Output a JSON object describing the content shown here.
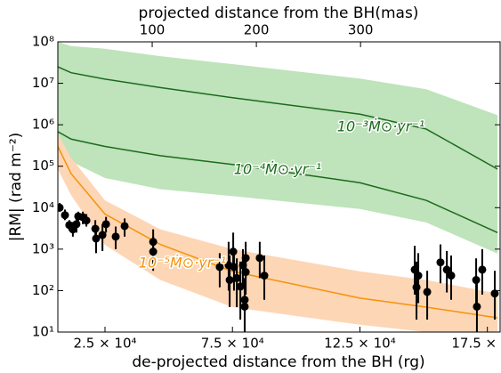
{
  "chart_data": {
    "type": "line",
    "x_label": "de-projected distance from the BH (rg)",
    "x2_label": "projected distance from the BH(mas)",
    "y_label": "|RM| (rad m⁻²)",
    "log_y": true,
    "legend": false,
    "xlim": [
      6500,
      180000
    ],
    "xticks": [
      {
        "value": 25000,
        "label": "2.5 × 10⁴"
      },
      {
        "value": 75000,
        "label": "7.5 × 10⁴"
      },
      {
        "value": 125000,
        "label": "12.5 × 10⁴"
      },
      {
        "value": 175000,
        "label": "17.5 × 10⁴"
      }
    ],
    "x2lim": [
      9.4,
      434
    ],
    "x2ticks": [
      100,
      200,
      300
    ],
    "ylim": [
      10,
      100000000
    ],
    "yticks": [
      {
        "value": 10,
        "label": "10¹"
      },
      {
        "value": 100,
        "label": "10²"
      },
      {
        "value": 1000,
        "label": "10³"
      },
      {
        "value": 10000,
        "label": "10⁴"
      },
      {
        "value": 100000,
        "label": "10⁵"
      },
      {
        "value": 1000000,
        "label": "10⁶"
      },
      {
        "value": 10000000,
        "label": "10⁷"
      },
      {
        "value": 100000000,
        "label": "10⁸"
      }
    ],
    "x": [
      6500,
      11700,
      25000,
      46700,
      75000,
      125000,
      151000,
      179000
    ],
    "bands": [
      {
        "color": "#bfe3bb",
        "upper": [
          100000000,
          79000000,
          68000000,
          45000000,
          29000000,
          13000000,
          7200000,
          1700000
        ],
        "lower": [
          370000,
          130000,
          52000,
          28000,
          19000,
          9300,
          4400,
          780
        ]
      },
      {
        "color": "#fdd6b5",
        "upper": [
          620000,
          160000,
          15000,
          3000,
          1000,
          290,
          180,
          85
        ],
        "lower": [
          85000,
          20000,
          1260,
          180,
          40,
          15,
          10,
          10
        ]
      }
    ],
    "series": [
      {
        "name": "10⁻³Ṁ⊙·yr⁻¹",
        "color": "#1a6b1a",
        "values": [
          25000000,
          18000000,
          12600000,
          7900000,
          4500000,
          1800000,
          790000,
          85000
        ]
      },
      {
        "name": "10⁻⁴Ṁ⊙·yr⁻¹",
        "color": "#1a6b1a",
        "values": [
          680000,
          450000,
          300000,
          180000,
          110000,
          40000,
          15000,
          2500
        ]
      },
      {
        "name": "10⁻⁵Ṁ⊙·yr⁻¹",
        "color": "#f5930a",
        "values": [
          300000,
          66000,
          7000,
          1300,
          290,
          66,
          40,
          22
        ]
      }
    ],
    "points": {
      "color": "#000000",
      "x": [
        7200,
        9300,
        11000,
        12400,
        13800,
        14500,
        16300,
        17700,
        21200,
        21500,
        24000,
        25400,
        29200,
        32700,
        43900,
        43900,
        70000,
        73500,
        73900,
        75300,
        75600,
        76700,
        78100,
        79100,
        79800,
        79800,
        80200,
        80200,
        85700,
        87500,
        146500,
        147200,
        147900,
        151400,
        156600,
        159100,
        160800,
        170600,
        170900,
        173000,
        177900
      ],
      "values": [
        10000,
        6600,
        3800,
        3000,
        4000,
        6200,
        5900,
        4900,
        3100,
        1800,
        2200,
        4000,
        2000,
        3600,
        1500,
        870,
        370,
        410,
        180,
        870,
        370,
        200,
        125,
        410,
        60,
        41,
        280,
        610,
        610,
        230,
        320,
        120,
        230,
        93,
        480,
        320,
        230,
        180,
        41,
        320,
        85
      ],
      "lower": [
        8000,
        5000,
        2800,
        2000,
        2500,
        4500,
        4000,
        3500,
        1800,
        800,
        900,
        2500,
        1000,
        2000,
        500,
        300,
        120,
        100,
        40,
        300,
        100,
        40,
        20,
        120,
        10,
        10,
        80,
        200,
        200,
        60,
        80,
        20,
        50,
        20,
        150,
        90,
        60,
        40,
        10,
        80,
        20
      ],
      "upper": [
        13000,
        9000,
        5000,
        4500,
        6000,
        8000,
        8000,
        7000,
        5000,
        3500,
        4000,
        6000,
        3500,
        5500,
        3000,
        2000,
        800,
        1500,
        700,
        2500,
        1000,
        600,
        500,
        1000,
        200,
        120,
        800,
        1500,
        1500,
        700,
        1200,
        500,
        800,
        300,
        1300,
        900,
        700,
        600,
        150,
        1000,
        300
      ]
    }
  }
}
